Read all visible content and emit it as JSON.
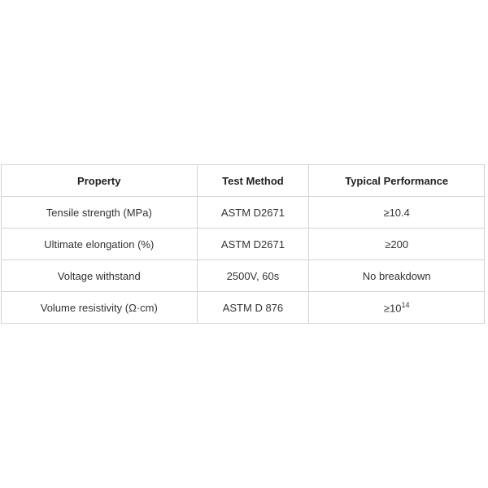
{
  "table": {
    "headers": [
      "Property",
      "Test Method",
      "Typical Performance"
    ],
    "rows": [
      {
        "property": "Tensile strength (MPa)",
        "method": "ASTM D2671",
        "performance": "≥10.4"
      },
      {
        "property": "Ultimate elongation (%)",
        "method": "ASTM D2671",
        "performance": "≥200"
      },
      {
        "property": "Voltage withstand",
        "method": "2500V, 60s",
        "performance": "No breakdown"
      },
      {
        "property": "Volume resistivity (Ω·cm)",
        "method": "ASTM D 876",
        "performance_base": "≥10",
        "performance_exp": "14"
      }
    ]
  }
}
